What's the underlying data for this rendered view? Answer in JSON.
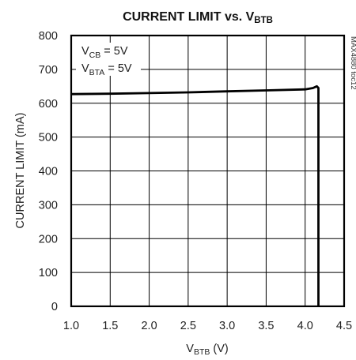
{
  "chart_data": {
    "type": "line",
    "title": {
      "main": "CURRENT LIMIT vs. V",
      "sub": "BTB"
    },
    "xlabel": {
      "main": "V",
      "sub": "BTB",
      "suffix": " (V)"
    },
    "ylabel": "CURRENT LIMIT (mA)",
    "xlim": [
      1.0,
      4.5
    ],
    "ylim": [
      0,
      800
    ],
    "x_ticks": [
      "1.0",
      "1.5",
      "2.0",
      "2.5",
      "3.0",
      "3.5",
      "4.0",
      "4.5"
    ],
    "y_ticks": [
      "0",
      "100",
      "200",
      "300",
      "400",
      "500",
      "600",
      "700",
      "800"
    ],
    "grid": true,
    "annotations": [
      {
        "main": "V",
        "sub": "CB",
        "suffix": " = 5V"
      },
      {
        "main": "V",
        "sub": "BTA",
        "suffix": " = 5V"
      }
    ],
    "side_label": "MAX4880 toc12",
    "series": [
      {
        "x": [
          1.0,
          1.5,
          2.0,
          2.5,
          3.0,
          3.5,
          4.0,
          4.1,
          4.15,
          4.17,
          4.17,
          4.17
        ],
        "y": [
          627,
          628,
          630,
          632,
          635,
          638,
          641,
          645,
          650,
          645,
          300,
          0
        ]
      }
    ]
  }
}
